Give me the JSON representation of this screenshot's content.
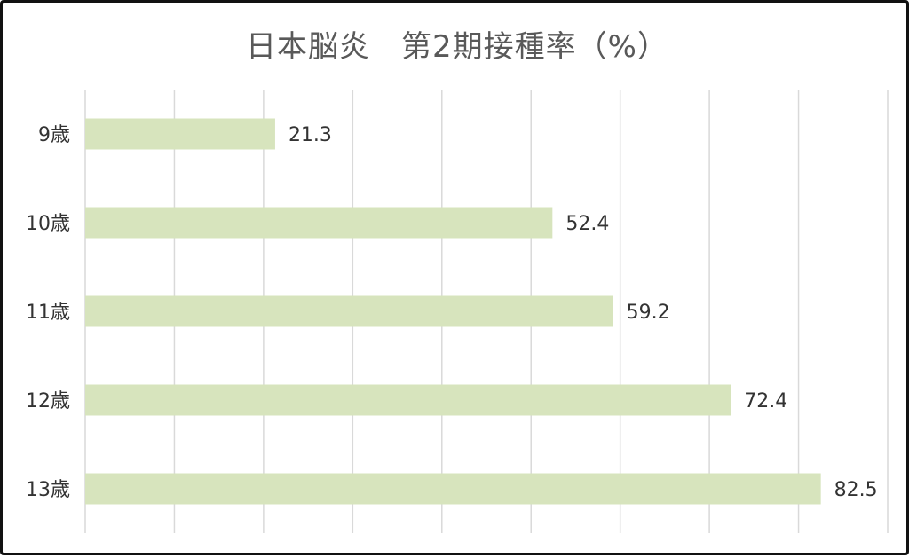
{
  "chart_data": {
    "type": "bar",
    "orientation": "horizontal",
    "title": "日本脳炎　第2期接種率（%）",
    "categories": [
      "9歳",
      "10歳",
      "11歳",
      "12歳",
      "13歳"
    ],
    "series": [
      {
        "values": [
          21.3,
          52.4,
          59.2,
          72.4,
          82.5
        ],
        "color": "#d7e4bd"
      }
    ],
    "data_labels": [
      "21.3",
      "52.4",
      "59.2",
      "72.4",
      "82.5"
    ],
    "xlim": [
      0,
      90
    ],
    "grid": true,
    "gridline_color": "#d9d9d9",
    "legend": "none"
  }
}
